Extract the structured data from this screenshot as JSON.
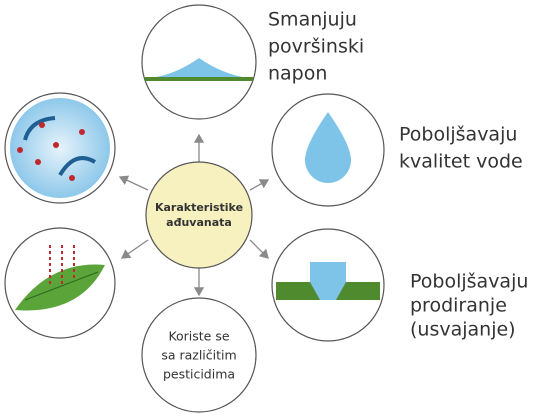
{
  "center": {
    "lines": [
      "Karakteristike",
      "ađuvanata"
    ]
  },
  "nodes": [
    {
      "lines": [
        "Smanjuju",
        "površinski",
        "napon"
      ]
    },
    {
      "lines": [
        "Poboljšavaju",
        "kvalitet vode"
      ]
    },
    {
      "lines": [
        "Poboljšavaju",
        "prodiranje",
        "(usvajanje)"
      ]
    },
    {
      "lines": [
        "Koriste se",
        "sa različitim",
        "pesticidima"
      ]
    }
  ]
}
